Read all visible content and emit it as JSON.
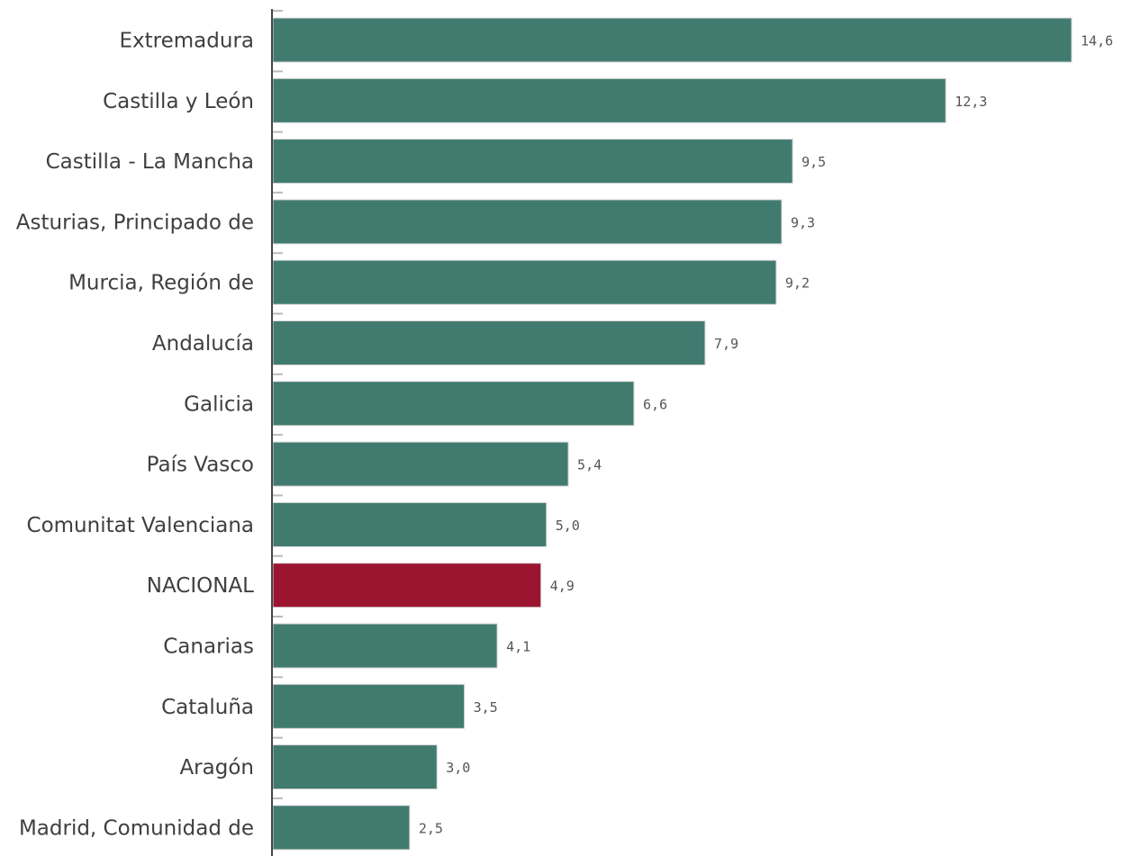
{
  "chart_data": {
    "type": "bar",
    "orientation": "horizontal",
    "title": "",
    "xlabel": "",
    "ylabel": "",
    "xlim": [
      0,
      14.6
    ],
    "grid": false,
    "legend": "none",
    "categories": [
      "Extremadura",
      "Castilla y León",
      "Castilla - La Mancha",
      "Asturias, Principado de",
      "Murcia, Región de",
      "Andalucía",
      "Galicia",
      "País Vasco",
      "Comunitat Valenciana",
      "NACIONAL",
      "Canarias",
      "Cataluña",
      "Aragón",
      "Madrid, Comunidad de"
    ],
    "values": [
      14.6,
      12.3,
      9.5,
      9.3,
      9.2,
      7.9,
      6.6,
      5.4,
      5.0,
      4.9,
      4.1,
      3.5,
      3.0,
      2.5
    ],
    "value_labels": [
      "14,6",
      "12,3",
      "9,5",
      "9,3",
      "9,2",
      "7,9",
      "6,6",
      "5,4",
      "5,0",
      "4,9",
      "4,1",
      "3,5",
      "3,0",
      "2,5"
    ],
    "highlight_category": "NACIONAL",
    "colors": {
      "bar": "#417b70",
      "highlight": "#9b1531",
      "axis": "#444444",
      "category_text": "#3f3f3f",
      "value_text": "#555555"
    }
  }
}
